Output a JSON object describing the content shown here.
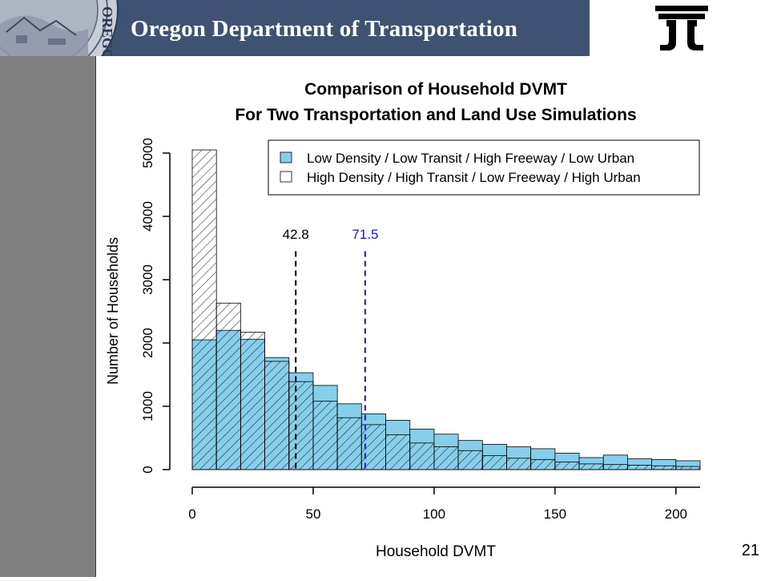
{
  "header": {
    "title": "Oregon Department of Transportation",
    "seal_text": "OREGON",
    "background_color": "#3f5273"
  },
  "slide": {
    "number": "21"
  },
  "chart_data": {
    "type": "bar",
    "title": "Comparison of Household DVMT",
    "subtitle": "For Two Transportation and Land Use Simulations",
    "xlabel": "Household DVMT",
    "ylabel": "Number of Households",
    "xlim": [
      0,
      210
    ],
    "ylim": [
      0,
      5000
    ],
    "x_ticks": [
      0,
      50,
      100,
      150,
      200
    ],
    "y_ticks": [
      0,
      1000,
      2000,
      3000,
      4000,
      5000
    ],
    "bin_width": 10,
    "bin_starts": [
      0,
      10,
      20,
      30,
      40,
      50,
      60,
      70,
      80,
      90,
      100,
      110,
      120,
      130,
      140,
      150,
      160,
      170,
      180,
      190,
      200
    ],
    "legend_position": "top-right",
    "grid": false,
    "series": [
      {
        "name": "Low Density / Low Transit / High Freeway / Low Urban",
        "fill": "solid",
        "color": "#87ceeb",
        "values": [
          2050,
          2200,
          2060,
          1770,
          1530,
          1330,
          1040,
          880,
          780,
          640,
          560,
          460,
          400,
          360,
          330,
          260,
          190,
          230,
          170,
          160,
          140
        ]
      },
      {
        "name": "High Density / High Transit / Low Freeway / High Urban",
        "fill": "hatched",
        "color": "#000000",
        "values": [
          5050,
          2630,
          2170,
          1710,
          1390,
          1080,
          820,
          710,
          550,
          420,
          360,
          300,
          220,
          180,
          160,
          120,
          90,
          80,
          70,
          60,
          50
        ]
      }
    ],
    "reference_lines": [
      {
        "value": 42.8,
        "label": "42.8",
        "color": "#000000"
      },
      {
        "value": 71.5,
        "label": "71.5",
        "color": "#1a1acd"
      }
    ]
  }
}
